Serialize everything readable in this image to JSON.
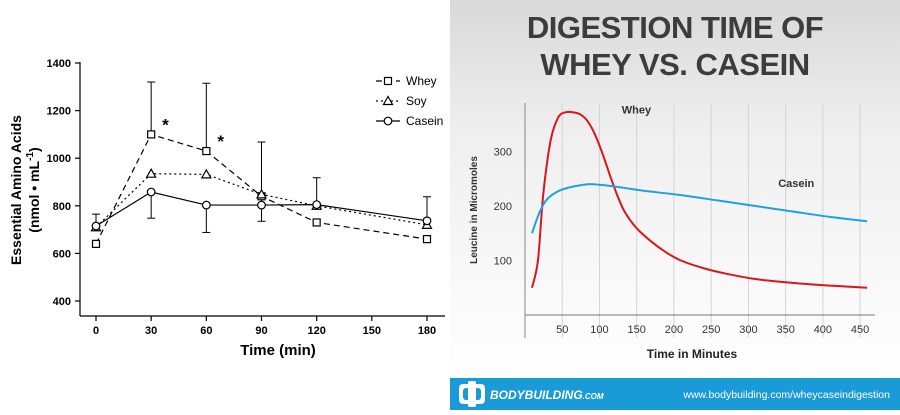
{
  "chart_data": [
    {
      "type": "line",
      "title": "",
      "xlabel": "Time (min)",
      "ylabel_line1": "Essential Amino Acids",
      "ylabel_unit": "(nmol • mL",
      "ylabel_sup": "-1",
      "ylabel_close": ")",
      "x_ticks": [
        "0",
        "30",
        "60",
        "90",
        "120",
        "150",
        "180"
      ],
      "y_ticks": [
        "400",
        "600",
        "800",
        "1000",
        "1200",
        "1400"
      ],
      "xlim": [
        0,
        180
      ],
      "ylim": [
        400,
        1400
      ],
      "x": [
        0,
        30,
        60,
        90,
        120,
        180
      ],
      "series": [
        {
          "name": "Whey",
          "marker": "square",
          "dash": "dashed",
          "values": [
            640,
            1100,
            1030,
            840,
            730,
            660
          ],
          "err_up": [
            0,
            1320,
            1315,
            0,
            0,
            0
          ],
          "err_down": [
            0,
            0,
            0,
            0,
            0,
            0
          ]
        },
        {
          "name": "Soy",
          "marker": "triangle",
          "dash": "dotted",
          "values": [
            710,
            935,
            932,
            848,
            800,
            720
          ],
          "err_up": [
            0,
            0,
            0,
            0,
            0,
            0
          ],
          "err_down": [
            0,
            0,
            0,
            0,
            0,
            0
          ]
        },
        {
          "name": "Casein",
          "marker": "circle",
          "dash": "solid",
          "values": [
            715,
            858,
            803,
            803,
            805,
            737
          ],
          "err_up": [
            765,
            0,
            0,
            1068,
            918,
            838
          ],
          "err_down": [
            0,
            748,
            688,
            735,
            0,
            0
          ]
        }
      ],
      "annotations": [
        {
          "text": "*",
          "x": 30,
          "y": 1100
        },
        {
          "text": "*",
          "x": 60,
          "y": 1030
        }
      ],
      "legend": "top-right"
    },
    {
      "type": "line",
      "title_line1": "DIGESTION TIME OF",
      "title_line2": "WHEY VS. CASEIN",
      "xlabel": "Time in Minutes",
      "ylabel": "Leucine in Micromoles",
      "x_ticks": [
        "50",
        "100",
        "150",
        "200",
        "250",
        "300",
        "350",
        "400",
        "450"
      ],
      "y_ticks": [
        "100",
        "200",
        "300"
      ],
      "xlim": [
        0,
        470
      ],
      "ylim": [
        0,
        400
      ],
      "series": [
        {
          "name": "Whey",
          "color": "#d9161b",
          "x": [
            0,
            8,
            15,
            25,
            35,
            45,
            55,
            65,
            75,
            85,
            95,
            105,
            115,
            125,
            140,
            160,
            180,
            200,
            230,
            260,
            300,
            350,
            400,
            450
          ],
          "y": [
            50,
            100,
            220,
            320,
            362,
            372,
            372,
            368,
            355,
            330,
            295,
            255,
            218,
            188,
            160,
            135,
            115,
            100,
            86,
            76,
            66,
            59,
            54,
            50
          ]
        },
        {
          "name": "Casein",
          "color": "#1aa3e0",
          "x": [
            0,
            10,
            20,
            35,
            50,
            65,
            75,
            90,
            110,
            130,
            150,
            200,
            250,
            300,
            350,
            400,
            450
          ],
          "y": [
            150,
            188,
            212,
            227,
            234,
            238,
            240,
            239,
            236,
            232,
            228,
            220,
            210,
            200,
            190,
            180,
            172
          ]
        }
      ]
    }
  ],
  "footer": {
    "brand": "BODYBUILDING",
    "brand_suffix": ".COM",
    "url": "www.bodybuilding.com/wheycaseindigestion"
  },
  "colors": {
    "whey_red": "#d9161b",
    "casein_blue": "#1aa3e0",
    "footer_blue": "#1a9ad6"
  }
}
